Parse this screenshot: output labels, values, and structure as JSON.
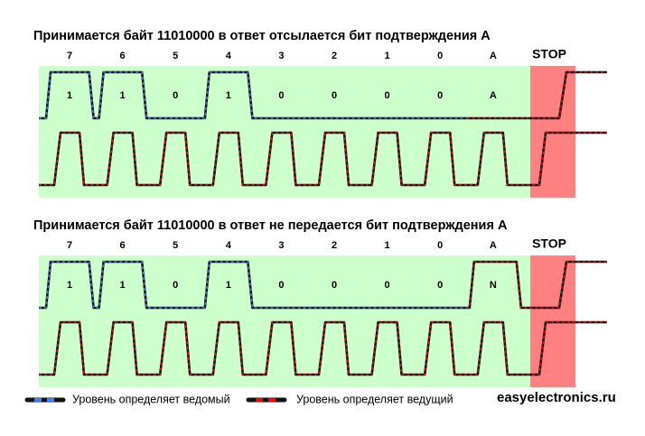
{
  "diagrams": [
    {
      "title": "Принимается байт 11010000 в ответ отсылается бит подтверждения А",
      "bit_labels": [
        "7",
        "6",
        "5",
        "4",
        "3",
        "2",
        "1",
        "0",
        "A"
      ],
      "stop_label": "STOP",
      "bit_values": [
        "1",
        "1",
        "0",
        "1",
        "0",
        "0",
        "0",
        "0",
        "A"
      ]
    },
    {
      "title": "Принимается байт 11010000 в ответ не передается бит подтверждения А",
      "bit_labels": [
        "7",
        "6",
        "5",
        "4",
        "3",
        "2",
        "1",
        "0",
        "A"
      ],
      "stop_label": "STOP",
      "bit_values": [
        "1",
        "1",
        "0",
        "1",
        "0",
        "0",
        "0",
        "0",
        "N"
      ]
    }
  ],
  "legend": [
    {
      "label": "Уровень определяет ведомый"
    },
    {
      "label": "Уровень определяет ведущий"
    }
  ],
  "site": "easyelectronics.ru"
}
